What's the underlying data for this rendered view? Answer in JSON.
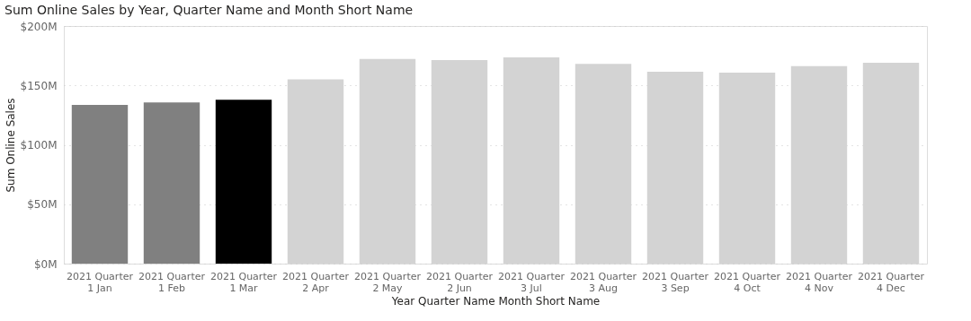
{
  "chart_data": {
    "type": "bar",
    "title": "Sum Online Sales by Year, Quarter Name and Month Short Name",
    "xlabel": "Year Quarter Name Month Short Name",
    "ylabel": "Sum Online Sales",
    "categories": [
      "2021 Quarter 1 Jan",
      "2021 Quarter 1 Feb",
      "2021 Quarter 1 Mar",
      "2021 Quarter 2 Apr",
      "2021 Quarter 2 May",
      "2021 Quarter 2 Jun",
      "2021 Quarter 3 Jul",
      "2021 Quarter 3 Aug",
      "2021 Quarter 3 Sep",
      "2021 Quarter 4 Oct",
      "2021 Quarter 4 Nov",
      "2021 Quarter 4 Dec"
    ],
    "values": [
      133500000,
      135600000,
      137900000,
      155100000,
      172200000,
      171400000,
      173500000,
      168100000,
      161600000,
      160800000,
      166200000,
      169100000
    ],
    "colors": [
      "#808080",
      "#808080",
      "#000000",
      "#d3d3d3",
      "#d3d3d3",
      "#d3d3d3",
      "#d3d3d3",
      "#d3d3d3",
      "#d3d3d3",
      "#d3d3d3",
      "#d3d3d3",
      "#d3d3d3"
    ],
    "ylim": [
      0,
      200000000
    ],
    "yticks": [
      {
        "value": 0,
        "label": "$0M"
      },
      {
        "value": 50000000,
        "label": "$50M"
      },
      {
        "value": 100000000,
        "label": "$100M"
      },
      {
        "value": 150000000,
        "label": "$150M"
      },
      {
        "value": 200000000,
        "label": "$200M"
      }
    ],
    "grid": "y"
  }
}
